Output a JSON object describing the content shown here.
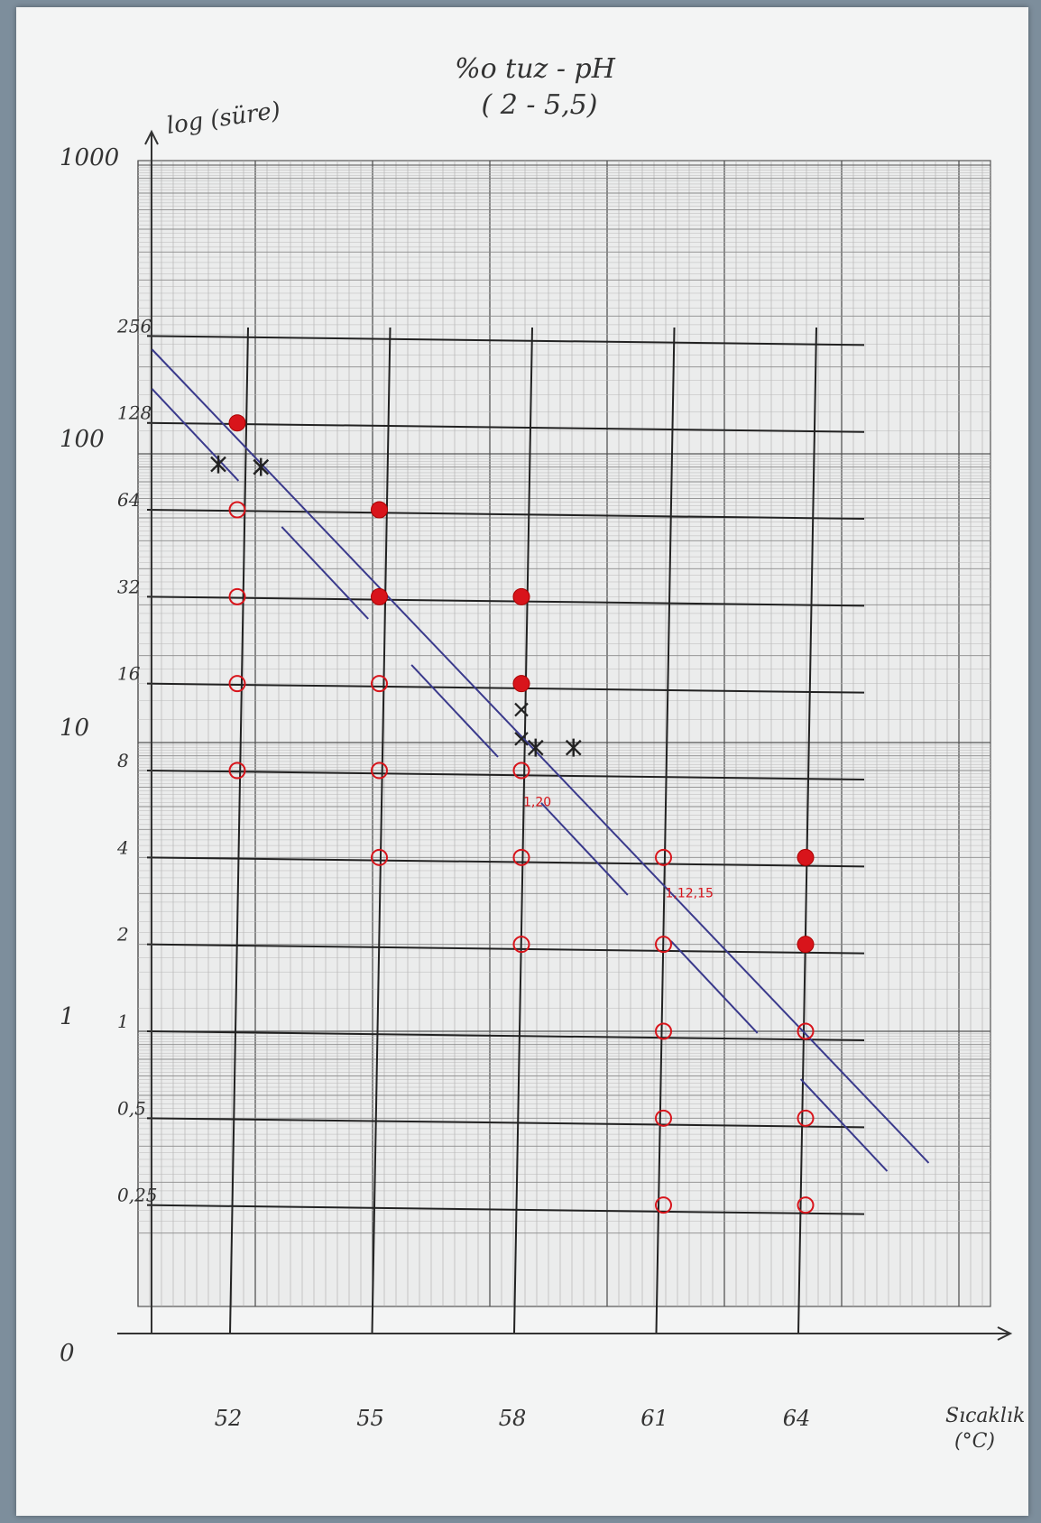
{
  "chart_data": {
    "type": "scatter",
    "title": "%o tuz - pH",
    "subtitle": "( 2 - 5,5)",
    "ylabel": "log (süre)",
    "xlabel": "Sıcaklık",
    "xunit": "(°C)",
    "y_scale": "log",
    "x_categories": [
      "52",
      "55",
      "58",
      "61",
      "64"
    ],
    "x_values": [
      52,
      55,
      58,
      61,
      64
    ],
    "y_ticks_left": [
      "1000",
      "100",
      "10",
      "1",
      "0"
    ],
    "y_ticks_levels": [
      "256",
      "128",
      "64",
      "32",
      "16",
      "8",
      "4",
      "2",
      "1",
      "0,5",
      "0,25"
    ],
    "level_values": [
      256,
      128,
      64,
      32,
      16,
      8,
      4,
      2,
      1,
      0.5,
      0.25
    ],
    "grid": true,
    "series": [
      {
        "marker": "filled-circle",
        "color": "#d8141b",
        "points": [
          [
            52,
            128
          ],
          [
            55,
            64
          ],
          [
            55,
            32
          ],
          [
            58,
            32
          ],
          [
            58,
            16
          ],
          [
            64,
            4
          ],
          [
            64,
            2
          ]
        ]
      },
      {
        "marker": "open-circle",
        "color": "#d8141b",
        "points": [
          [
            52,
            64
          ],
          [
            52,
            32
          ],
          [
            52,
            16
          ],
          [
            52,
            8
          ],
          [
            55,
            16
          ],
          [
            55,
            8
          ],
          [
            55,
            4
          ],
          [
            58,
            8
          ],
          [
            58,
            4
          ],
          [
            58,
            2
          ],
          [
            61,
            4
          ],
          [
            61,
            2
          ],
          [
            61,
            1
          ],
          [
            61,
            0.5
          ],
          [
            61,
            0.25
          ],
          [
            64,
            1
          ],
          [
            64,
            0.5
          ],
          [
            64,
            0.25
          ]
        ]
      },
      {
        "marker": "star",
        "color": "#222222",
        "points": [
          [
            51.6,
            92
          ],
          [
            52.5,
            90
          ],
          [
            58.3,
            9.6
          ],
          [
            59.1,
            9.6
          ]
        ]
      },
      {
        "marker": "x",
        "color": "#222222",
        "points": [
          [
            58,
            13
          ],
          [
            58,
            10.3
          ]
        ]
      }
    ],
    "annotations": [
      {
        "text": "1,20",
        "x": 58,
        "y": 6.2,
        "color": "#d8141b"
      },
      {
        "text": "1,12,15",
        "x": 61,
        "y": 3.0,
        "color": "#d8141b"
      }
    ],
    "fit_lines": [
      {
        "style": "solid",
        "color": "#3a3a8c",
        "from": [
          50.2,
          230
        ],
        "to": [
          66.6,
          0.35
        ]
      },
      {
        "style": "dashed",
        "color": "#3a3a8c",
        "from": [
          50.2,
          168
        ],
        "to": [
          66.3,
          0.26
        ]
      }
    ]
  }
}
